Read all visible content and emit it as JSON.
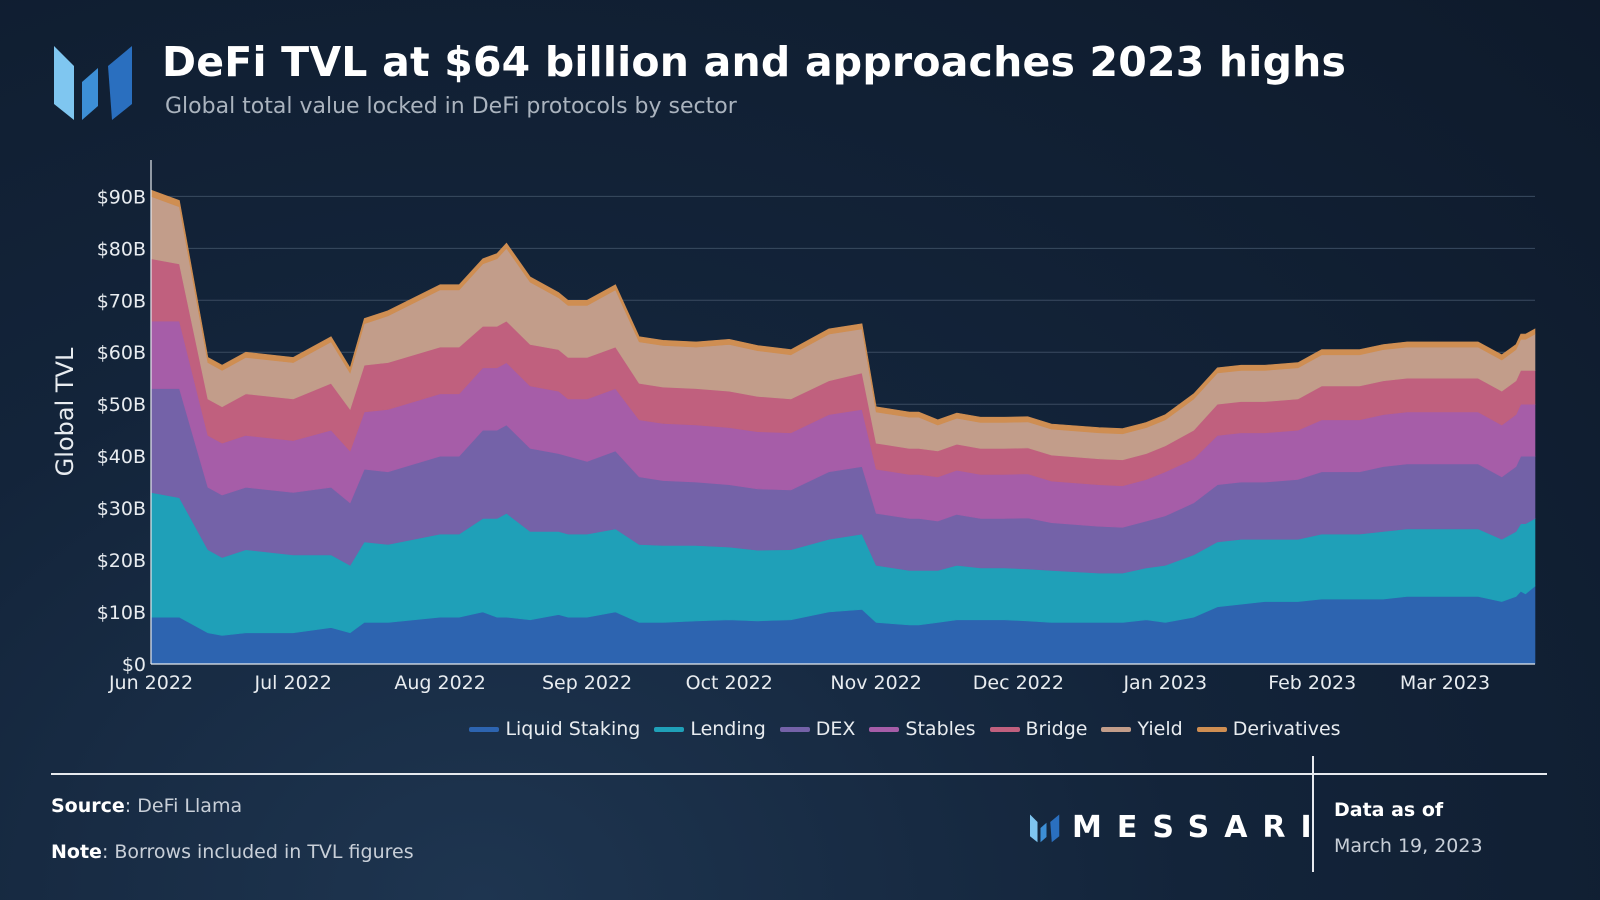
{
  "header": {
    "title": "DeFi TVL at $64 billion and approaches 2023 highs",
    "subtitle": "Global total value locked in DeFi protocols by sector"
  },
  "footer": {
    "source_label": "Source",
    "source_value": "DeFi Llama",
    "note_label": "Note",
    "note_value": "Borrows included in TVL figures",
    "brand": "MESSARI",
    "data_as_of_label": "Data as of",
    "data_as_of_date": "March 19, 2023"
  },
  "chart_data": {
    "type": "area",
    "stacked": true,
    "title": "DeFi TVL at $64 billion and approaches 2023 highs",
    "ylabel": "Global TVL",
    "xlabel": "",
    "ylim": [
      0,
      97
    ],
    "yticks": [
      0,
      10,
      20,
      30,
      40,
      50,
      60,
      70,
      80,
      90
    ],
    "ytick_labels": [
      "$0",
      "$10B",
      "$20B",
      "$30B",
      "$40B",
      "$50B",
      "$60B",
      "$70B",
      "$80B",
      "$90B"
    ],
    "xlim": [
      0,
      292
    ],
    "xticks": [
      {
        "label": "Jun 2022",
        "day": 0
      },
      {
        "label": "Jul 2022",
        "day": 30
      },
      {
        "label": "Aug 2022",
        "day": 61
      },
      {
        "label": "Sep 2022",
        "day": 92
      },
      {
        "label": "Oct 2022",
        "day": 122
      },
      {
        "label": "Nov 2022",
        "day": 153
      },
      {
        "label": "Dec 2022",
        "day": 183
      },
      {
        "label": "Jan 2023",
        "day": 214
      },
      {
        "label": "Feb 2023",
        "day": 245
      },
      {
        "label": "Mar 2023",
        "day": 273
      }
    ],
    "x": [
      0,
      6,
      12,
      15,
      20,
      30,
      38,
      42,
      45,
      50,
      61,
      65,
      70,
      73,
      75,
      80,
      86,
      88,
      92,
      98,
      103,
      108,
      115,
      122,
      128,
      135,
      143,
      150,
      153,
      160,
      162,
      166,
      170,
      175,
      180,
      185,
      190,
      200,
      205,
      210,
      214,
      220,
      225,
      230,
      235,
      242,
      247,
      255,
      260,
      265,
      270,
      275,
      280,
      285,
      288,
      289,
      290,
      292
    ],
    "legend": [
      "Liquid Staking",
      "Lending",
      "DEX",
      "Stables",
      "Bridge",
      "Yield",
      "Derivatives"
    ],
    "colors": [
      "#2d64b0",
      "#1fa0b8",
      "#7462a8",
      "#a65da8",
      "#c0607e",
      "#c29d8a",
      "#cf8e52"
    ],
    "series": [
      {
        "name": "Liquid Staking",
        "values": [
          9,
          9,
          6,
          5.5,
          6,
          6,
          7,
          6,
          8,
          8,
          9,
          9,
          10,
          9,
          9,
          8.5,
          9.5,
          9,
          9,
          10,
          8,
          8,
          8.3,
          8.5,
          8.3,
          8.5,
          10,
          10.5,
          8,
          7.5,
          7.5,
          8,
          8.5,
          8.5,
          8.5,
          8.3,
          8,
          8,
          8,
          8.5,
          8,
          9,
          11,
          11.5,
          12,
          12,
          12.5,
          12.5,
          12.5,
          13,
          13,
          13,
          13,
          12,
          13,
          14,
          13.5,
          15
        ]
      },
      {
        "name": "Lending",
        "values": [
          24,
          23,
          16,
          15,
          16,
          15,
          14,
          13,
          15.5,
          15,
          16,
          16,
          18,
          19,
          20,
          17,
          16,
          16,
          16,
          16,
          15,
          14.8,
          14.5,
          14,
          13.6,
          13.5,
          14,
          14.5,
          11,
          10.5,
          10.5,
          10,
          10.5,
          10,
          10,
          10,
          10,
          9.5,
          9.5,
          10,
          11,
          12,
          12.5,
          12.5,
          12,
          12,
          12.5,
          12.5,
          13,
          13,
          13,
          13,
          13,
          12,
          12.5,
          13,
          13.5,
          13
        ]
      },
      {
        "name": "DEX",
        "values": [
          20,
          21,
          12,
          12,
          12,
          12,
          13,
          12,
          14,
          14,
          15,
          15,
          17,
          17,
          17,
          16,
          15,
          15,
          14,
          15,
          13,
          12.5,
          12.2,
          12,
          11.8,
          11.5,
          13,
          13,
          10,
          10,
          10,
          9.5,
          9.8,
          9.5,
          9.5,
          9.8,
          9.2,
          9,
          8.8,
          9,
          9.5,
          10,
          11,
          11,
          11,
          11.5,
          12,
          12,
          12.5,
          12.5,
          12.5,
          12.5,
          12.5,
          12,
          12.5,
          13,
          13,
          12
        ]
      },
      {
        "name": "Stables",
        "values": [
          13,
          13,
          10,
          10,
          10,
          10,
          11,
          10,
          11,
          12,
          12,
          12,
          12,
          12,
          12,
          12,
          12,
          11,
          12,
          12,
          11,
          11,
          11,
          11,
          11,
          11,
          11,
          11,
          8.5,
          8.5,
          8.5,
          8.5,
          8.5,
          8.5,
          8.5,
          8.5,
          8,
          8,
          8,
          8,
          8.5,
          8.5,
          9.5,
          9.5,
          9.5,
          9.5,
          10,
          10,
          10,
          10,
          10,
          10,
          10,
          10,
          10,
          10,
          10,
          10
        ]
      },
      {
        "name": "Bridge",
        "values": [
          12,
          11,
          7,
          7,
          8,
          8,
          9,
          8,
          9,
          9,
          9,
          9,
          8,
          8,
          8,
          8,
          8,
          8,
          8,
          8,
          7,
          7,
          7,
          7,
          6.8,
          6.5,
          6.5,
          7,
          5,
          5,
          5,
          5,
          5,
          5,
          5,
          5,
          5,
          5,
          5,
          5,
          5,
          5.5,
          6,
          6,
          6,
          6,
          6.5,
          6.5,
          6.5,
          6.5,
          6.5,
          6.5,
          6.5,
          6.5,
          6.5,
          6.5,
          6.5,
          6.5
        ]
      },
      {
        "name": "Yield",
        "values": [
          12,
          11,
          7,
          7,
          7,
          7,
          8,
          7,
          8,
          9,
          11,
          11,
          12,
          13,
          14,
          12,
          10,
          10,
          10,
          11,
          8,
          8,
          8,
          9,
          8.8,
          8.5,
          9,
          8.5,
          6,
          6,
          6,
          5,
          5,
          5,
          5,
          5,
          5,
          5,
          5,
          5,
          5,
          6,
          6,
          6,
          6,
          6,
          6,
          6,
          6,
          6,
          6,
          6,
          6,
          6,
          6,
          6,
          6,
          7
        ]
      },
      {
        "name": "Derivatives",
        "values": [
          1.2,
          1.2,
          1,
          1,
          1,
          1,
          1,
          1,
          1,
          1,
          1,
          1,
          1,
          1,
          1,
          1,
          1,
          1,
          1,
          1,
          1,
          1,
          1,
          1,
          1,
          1,
          1,
          1,
          1,
          1,
          1,
          1,
          1,
          1,
          1,
          1,
          1,
          1,
          1,
          1,
          1,
          1,
          1,
          1,
          1,
          1,
          1,
          1,
          1,
          1,
          1,
          1,
          1,
          1,
          1,
          1,
          1,
          1
        ]
      }
    ]
  }
}
